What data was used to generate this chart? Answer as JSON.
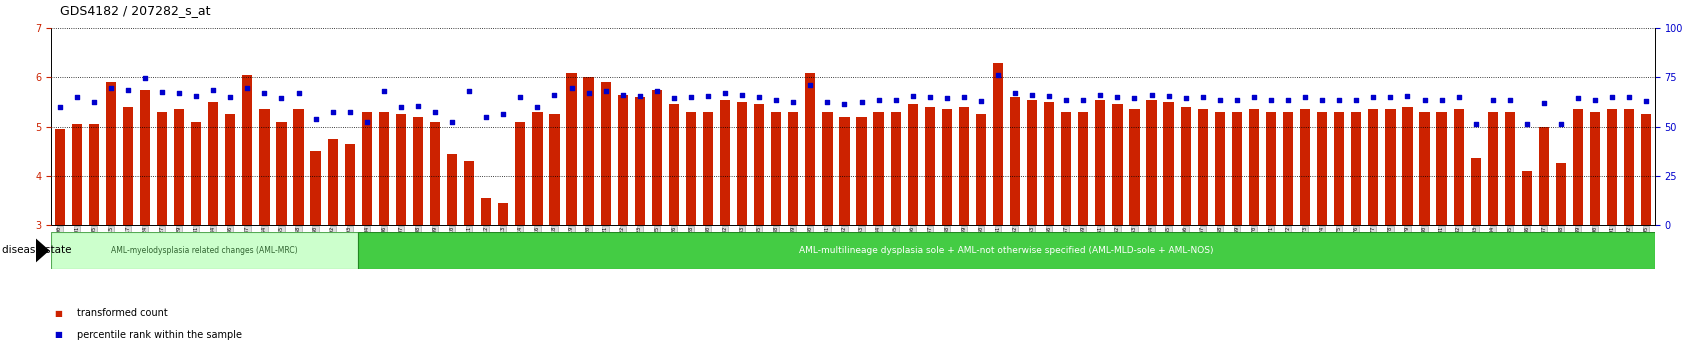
{
  "title": "GDS4182 / 207282_s_at",
  "samples": [
    "GSM531600",
    "GSM531601",
    "GSM531605",
    "GSM531615",
    "GSM531617",
    "GSM531624",
    "GSM531627",
    "GSM531629",
    "GSM531631",
    "GSM531634",
    "GSM531636",
    "GSM531637",
    "GSM531654",
    "GSM531655",
    "GSM531658",
    "GSM531660",
    "GSM531602",
    "GSM531603",
    "GSM531604",
    "GSM531606",
    "GSM531607",
    "GSM531608",
    "GSM531609",
    "GSM531610",
    "GSM531611",
    "GSM531612",
    "GSM531613",
    "GSM531614",
    "GSM531616",
    "GSM531618",
    "GSM531619",
    "GSM531620",
    "GSM531621",
    "GSM531622",
    "GSM531623",
    "GSM531625",
    "GSM531626",
    "GSM531628",
    "GSM531630",
    "GSM531632",
    "GSM531633",
    "GSM531635",
    "GSM531638",
    "GSM531639",
    "GSM531640",
    "GSM531641",
    "GSM531642",
    "GSM531643",
    "GSM531644",
    "GSM531645",
    "GSM531646",
    "GSM531647",
    "GSM531648",
    "GSM531649",
    "GSM531650",
    "GSM531651",
    "GSM531652",
    "GSM531653",
    "GSM531656",
    "GSM531657",
    "GSM531659",
    "GSM531661",
    "GSM531662",
    "GSM531663",
    "GSM531664",
    "GSM531665",
    "GSM531666",
    "GSM531667",
    "GSM531668",
    "GSM531669",
    "GSM531670",
    "GSM531671",
    "GSM531672",
    "GSM531673",
    "GSM531674",
    "GSM531675",
    "GSM531676",
    "GSM531677",
    "GSM531678",
    "GSM531679",
    "GSM531680",
    "GSM531681",
    "GSM531682",
    "GSM531683",
    "GSM531684",
    "GSM531685",
    "GSM531186",
    "GSM531187",
    "GSM531188",
    "GSM531189",
    "GSM531190",
    "GSM531191",
    "GSM531192",
    "GSM531195"
  ],
  "bar_values": [
    4.95,
    5.05,
    5.05,
    5.9,
    5.4,
    5.75,
    5.3,
    5.35,
    5.1,
    5.5,
    5.25,
    6.05,
    5.35,
    5.1,
    5.35,
    4.5,
    4.75,
    4.65,
    5.3,
    5.3,
    5.25,
    5.2,
    5.1,
    4.45,
    4.3,
    3.55,
    3.45,
    5.1,
    5.3,
    5.25,
    6.1,
    6.0,
    5.9,
    5.65,
    5.6,
    5.75,
    5.45,
    5.3,
    5.3,
    5.55,
    5.5,
    5.45,
    5.3,
    5.3,
    6.1,
    5.3,
    5.2,
    5.2,
    5.3,
    5.3,
    5.45,
    5.4,
    5.35,
    5.4,
    5.25,
    6.3,
    5.6,
    5.55,
    5.5,
    5.3,
    5.3,
    5.55,
    5.45,
    5.35,
    5.55,
    5.5,
    5.4,
    5.35,
    5.3,
    5.3,
    5.35,
    5.3,
    5.3,
    5.35,
    5.3,
    5.3,
    5.3,
    5.35,
    5.35,
    5.4,
    5.3,
    5.3,
    5.35,
    4.35,
    5.3,
    5.3,
    4.1,
    5.0,
    4.25,
    5.35,
    5.3,
    5.35,
    5.35,
    5.25
  ],
  "dot_values": [
    5.4,
    5.6,
    5.5,
    5.78,
    5.75,
    5.98,
    5.7,
    5.68,
    5.62,
    5.75,
    5.6,
    5.78,
    5.68,
    5.58,
    5.68,
    5.15,
    5.3,
    5.3,
    5.1,
    5.72,
    5.4,
    5.42,
    5.3,
    5.1,
    5.72,
    5.2,
    5.25,
    5.6,
    5.4,
    5.65,
    5.78,
    5.68,
    5.72,
    5.65,
    5.62,
    5.72,
    5.58,
    5.6,
    5.62,
    5.68,
    5.65,
    5.6,
    5.55,
    5.5,
    5.85,
    5.5,
    5.45,
    5.5,
    5.55,
    5.55,
    5.62,
    5.6,
    5.58,
    5.6,
    5.52,
    6.05,
    5.68,
    5.65,
    5.62,
    5.55,
    5.55,
    5.65,
    5.6,
    5.58,
    5.65,
    5.62,
    5.58,
    5.6,
    5.55,
    5.55,
    5.6,
    5.55,
    5.55,
    5.6,
    5.55,
    5.55,
    5.55,
    5.6,
    5.6,
    5.62,
    5.55,
    5.55,
    5.6,
    5.05,
    5.55,
    5.55,
    5.05,
    5.48,
    5.05,
    5.58,
    5.55,
    5.6,
    5.6,
    5.52
  ],
  "ylim_left": [
    3,
    7
  ],
  "ylim_right": [
    0,
    100
  ],
  "yticks_left": [
    3,
    4,
    5,
    6,
    7
  ],
  "yticks_right": [
    0,
    25,
    50,
    75,
    100
  ],
  "bar_color": "#cc2200",
  "dot_color": "#0000cc",
  "bg_color": "#ffffff",
  "n_mrc": 18,
  "mrc_color": "#ccffcc",
  "mrc_label": "AML-myelodysplasia related changes (AML-MRC)",
  "mld_color": "#44cc44",
  "mld_label": "AML-multilineage dysplasia sole + AML-not otherwise specified (AML-MLD-sole + AML-NOS)",
  "legend_bar": "transformed count",
  "legend_dot": "percentile rank within the sample",
  "disease_label": "disease state"
}
